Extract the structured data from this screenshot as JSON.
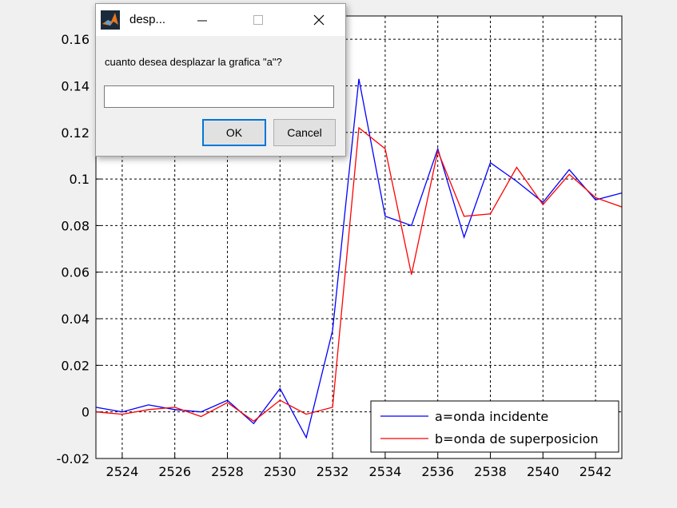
{
  "dialog": {
    "title": "desp...",
    "prompt": "cuanto desea desplazar la grafica \"a\"?",
    "input_value": "",
    "ok_label": "OK",
    "cancel_label": "Cancel",
    "icon": "matlab-icon"
  },
  "chart_data": {
    "type": "line",
    "title": "",
    "xlabel": "",
    "ylabel": "",
    "xlim": [
      2523,
      2543
    ],
    "ylim": [
      -0.02,
      0.17
    ],
    "grid": true,
    "legend_position": "bottom-right",
    "x_ticks": [
      "2524",
      "2526",
      "2528",
      "2530",
      "2532",
      "2534",
      "2536",
      "2538",
      "2540",
      "2542"
    ],
    "y_ticks": [
      "-0.02",
      "0",
      "0.02",
      "0.04",
      "0.06",
      "0.08",
      "0.1",
      "0.12",
      "0.14",
      "0.16"
    ],
    "x": [
      2523,
      2524,
      2525,
      2526,
      2527,
      2528,
      2529,
      2530,
      2531,
      2532,
      2533,
      2534,
      2535,
      2536,
      2537,
      2538,
      2539,
      2540,
      2541,
      2542,
      2543
    ],
    "series": [
      {
        "name": "a=onda incidente",
        "color": "#0000ff",
        "values": [
          0.002,
          0.0,
          0.003,
          0.001,
          0.0,
          0.005,
          -0.005,
          0.01,
          -0.011,
          0.035,
          0.143,
          0.084,
          0.08,
          0.113,
          0.075,
          0.107,
          0.099,
          0.09,
          0.104,
          0.091,
          0.094
        ]
      },
      {
        "name": "b=onda de superposicion",
        "color": "#ff0000",
        "values": [
          0.0,
          -0.001,
          0.001,
          0.002,
          -0.002,
          0.004,
          -0.004,
          0.005,
          -0.001,
          0.002,
          0.122,
          0.113,
          0.059,
          0.112,
          0.084,
          0.085,
          0.105,
          0.089,
          0.102,
          0.092,
          0.088
        ]
      }
    ]
  }
}
